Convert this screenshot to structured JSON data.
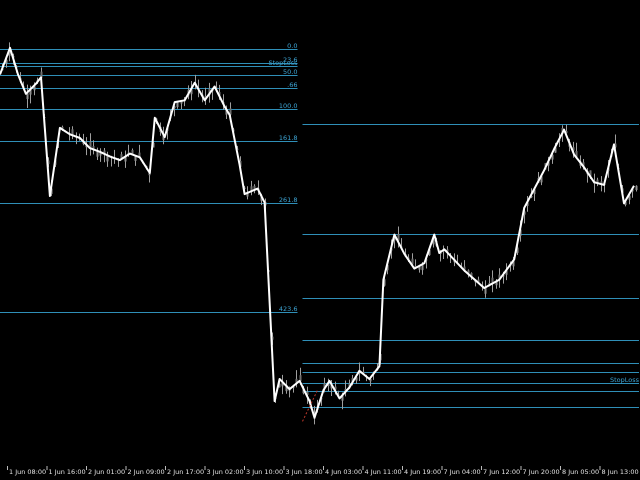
{
  "chart_data": {
    "type": "line",
    "background": "#000000",
    "colors": {
      "fib": "#2f8fb8",
      "fib_text": "#3ea6d6",
      "zigzag": "#ffffff",
      "candle": "#8f8f8f",
      "tick_text": "#e6e6e6",
      "red_segment": "#c0392b"
    },
    "price_range": [
      0,
      500
    ],
    "x_range": [
      0,
      1
    ],
    "fib_left": {
      "x_start": 0.0,
      "x_end": 0.4656,
      "levels": [
        {
          "label": "0.0",
          "price": 447
        },
        {
          "label": "23.6",
          "price": 432
        },
        {
          "label": "StopLoss",
          "price": 428
        },
        {
          "label": "50.0",
          "price": 418
        },
        {
          "label": ".66",
          "price": 404
        },
        {
          "label": "100.0",
          "price": 382
        },
        {
          "label": "161.8",
          "price": 347
        },
        {
          "label": "261.8",
          "price": 279
        },
        {
          "label": "423.6",
          "price": 161
        }
      ]
    },
    "fib_right": {
      "x_start": 0.4734,
      "x_end": 1.0,
      "levels": [
        {
          "label": "",
          "price": 365
        },
        {
          "label": "",
          "price": 246
        },
        {
          "label": "",
          "price": 176
        },
        {
          "label": "",
          "price": 130
        },
        {
          "label": "",
          "price": 105
        },
        {
          "label": "",
          "price": 96
        },
        {
          "label": "StopLoss",
          "price": 84
        },
        {
          "label": "",
          "price": 75
        },
        {
          "label": "",
          "price": 58
        }
      ]
    },
    "x_ticks": [
      "1 Jun 08:00",
      "1 Jun 16:00",
      "2 Jun 01:00",
      "2 Jun 09:00",
      "2 Jun 17:00",
      "3 Jun 02:00",
      "3 Jun 10:00",
      "3 Jun 18:00",
      "4 Jun 03:00",
      "4 Jun 11:00",
      "4 Jun 19:00",
      "7 Jun 04:00",
      "7 Jun 12:00",
      "7 Jun 20:00",
      "8 Jun 05:00",
      "8 Jun 13:00"
    ],
    "zigzag": [
      [
        0.0,
        419
      ],
      [
        0.0156,
        448
      ],
      [
        0.0281,
        419
      ],
      [
        0.0406,
        398
      ],
      [
        0.0563,
        409
      ],
      [
        0.0641,
        416
      ],
      [
        0.0781,
        287
      ],
      [
        0.0938,
        361
      ],
      [
        0.1094,
        354
      ],
      [
        0.125,
        350
      ],
      [
        0.1406,
        339
      ],
      [
        0.1563,
        335
      ],
      [
        0.1719,
        330
      ],
      [
        0.1875,
        326
      ],
      [
        0.2031,
        333
      ],
      [
        0.2188,
        329
      ],
      [
        0.2344,
        312
      ],
      [
        0.2422,
        372
      ],
      [
        0.2578,
        351
      ],
      [
        0.2734,
        389
      ],
      [
        0.2891,
        391
      ],
      [
        0.3047,
        410
      ],
      [
        0.3203,
        391
      ],
      [
        0.3359,
        406
      ],
      [
        0.3516,
        384
      ],
      [
        0.3594,
        375
      ],
      [
        0.375,
        321
      ],
      [
        0.3828,
        289
      ],
      [
        0.4031,
        295
      ],
      [
        0.4141,
        280
      ],
      [
        0.4297,
        64
      ],
      [
        0.4375,
        88
      ],
      [
        0.4531,
        77
      ],
      [
        0.4688,
        86
      ],
      [
        0.4844,
        64
      ],
      [
        0.4922,
        46
      ],
      [
        0.5063,
        76
      ],
      [
        0.5156,
        86
      ],
      [
        0.5313,
        67
      ],
      [
        0.5469,
        79
      ],
      [
        0.5625,
        97
      ],
      [
        0.5781,
        88
      ],
      [
        0.5938,
        102
      ],
      [
        0.6,
        196
      ],
      [
        0.6172,
        245
      ],
      [
        0.6328,
        224
      ],
      [
        0.6484,
        208
      ],
      [
        0.6641,
        214
      ],
      [
        0.6797,
        245
      ],
      [
        0.6875,
        225
      ],
      [
        0.6953,
        229
      ],
      [
        0.7266,
        206
      ],
      [
        0.7578,
        187
      ],
      [
        0.7813,
        196
      ],
      [
        0.8047,
        218
      ],
      [
        0.8203,
        274
      ],
      [
        0.8516,
        315
      ],
      [
        0.8672,
        338
      ],
      [
        0.8828,
        359
      ],
      [
        0.8984,
        332
      ],
      [
        0.9141,
        318
      ],
      [
        0.9297,
        302
      ],
      [
        0.9453,
        299
      ],
      [
        0.9609,
        343
      ],
      [
        0.9766,
        279
      ],
      [
        0.9922,
        298
      ]
    ]
  }
}
